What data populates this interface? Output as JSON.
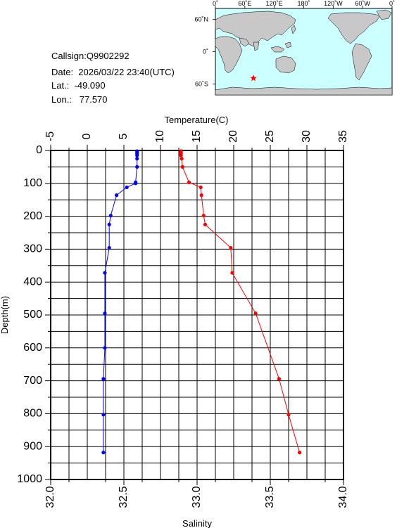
{
  "info": {
    "callsign": "Callsign:Q9902292",
    "date": "Date:  2026/03/22 23:40(UTC)",
    "lat": "Lat.:  -49.090",
    "lon": "Lon.:   77.570"
  },
  "map": {
    "top_labels": [
      "0˚",
      "60˚E",
      "120˚E",
      "180˚",
      "120˚W",
      "60˚W",
      "0˚"
    ],
    "side_labels": [
      "60˚N",
      "0˚",
      "60˚S"
    ],
    "station": {
      "lat": -49.09,
      "lon": 77.57
    },
    "colors": {
      "ocean": "#ccffff",
      "land": "#c8c8c8",
      "marker": "#ff0000"
    }
  },
  "chart_data": {
    "type": "line",
    "ylabel": "Depth(m)",
    "ylim": [
      0,
      1000
    ],
    "yticks": [
      0,
      100,
      200,
      300,
      400,
      500,
      600,
      700,
      800,
      900,
      1000
    ],
    "temperature_axis": {
      "label": "Temperature(C)",
      "range": [
        -5,
        35
      ],
      "ticks": [
        -5,
        0,
        5,
        10,
        15,
        20,
        25,
        30,
        35
      ]
    },
    "salinity_axis": {
      "label": "Salinity",
      "range": [
        32.0,
        34.0
      ],
      "ticks": [
        "32.0",
        "32.5",
        "33.0",
        "33.5",
        "34.0"
      ]
    },
    "grid": true,
    "series": [
      {
        "axis": "temperature",
        "color": "#ff0000",
        "points": [
          [
            12.8,
            2
          ],
          [
            12.8,
            5
          ],
          [
            12.8,
            10
          ],
          [
            12.8,
            15
          ],
          [
            12.9,
            25
          ],
          [
            13.0,
            50
          ],
          [
            13.9,
            97
          ],
          [
            15.5,
            112
          ],
          [
            15.6,
            136
          ],
          [
            15.9,
            198
          ],
          [
            16.1,
            225
          ],
          [
            19.6,
            296
          ],
          [
            19.8,
            372
          ],
          [
            23.0,
            495
          ],
          [
            26.2,
            694
          ],
          [
            27.5,
            803
          ],
          [
            29.0,
            918
          ]
        ]
      },
      {
        "axis": "salinity",
        "color": "#0000ff",
        "points": [
          [
            32.59,
            2
          ],
          [
            32.59,
            5
          ],
          [
            32.59,
            10
          ],
          [
            32.59,
            15
          ],
          [
            32.59,
            25
          ],
          [
            32.59,
            50
          ],
          [
            32.58,
            97
          ],
          [
            32.58,
            100
          ],
          [
            32.52,
            112
          ],
          [
            32.45,
            136
          ],
          [
            32.41,
            198
          ],
          [
            32.4,
            225
          ],
          [
            32.4,
            296
          ],
          [
            32.37,
            372
          ],
          [
            32.37,
            495
          ],
          [
            32.37,
            600
          ],
          [
            32.36,
            694
          ],
          [
            32.36,
            803
          ],
          [
            32.36,
            918
          ]
        ]
      }
    ]
  }
}
